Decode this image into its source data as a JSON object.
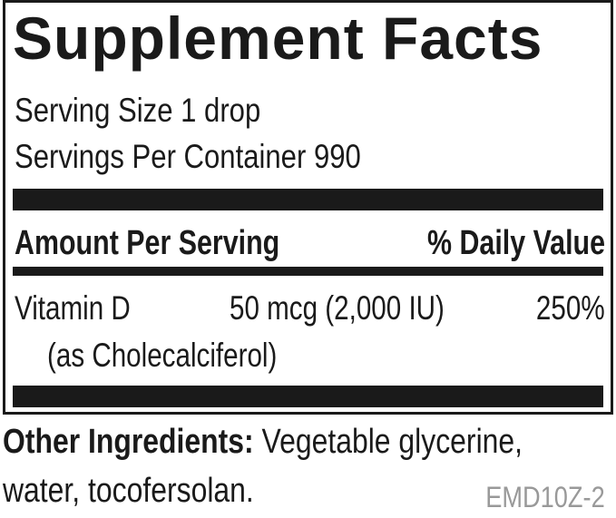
{
  "title": "Supplement Facts",
  "serving_size": "Serving Size 1 drop",
  "servings_per_container": "Servings Per Container 990",
  "header": {
    "amount": "Amount Per Serving",
    "daily_value": "% Daily Value"
  },
  "nutrients": [
    {
      "name": "Vitamin D",
      "form": "(as Cholecalciferol)",
      "amount": "50 mcg (2,000 IU)",
      "daily_value": "250%"
    }
  ],
  "other_ingredients": {
    "label": "Other Ingredients:",
    "line1": "Vegetable glycerine,",
    "line2": "water, tocofersolan."
  },
  "code": "EMD10Z-2"
}
